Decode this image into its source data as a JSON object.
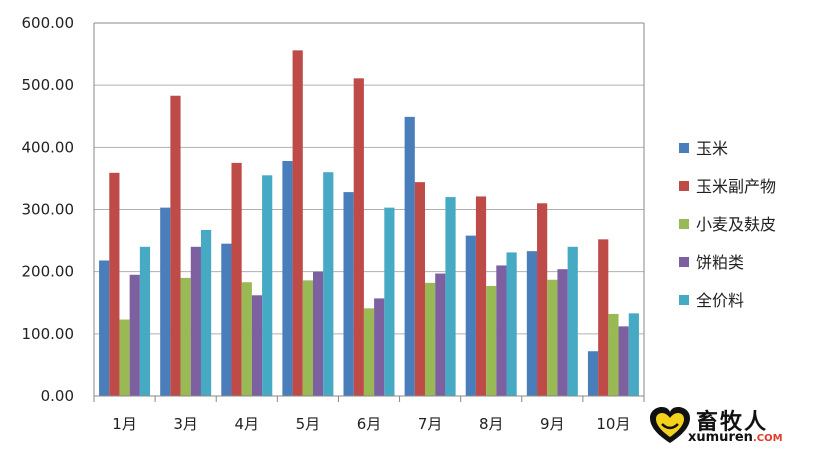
{
  "chart_data": {
    "type": "bar",
    "categories": [
      "1月",
      "3月",
      "4月",
      "5月",
      "6月",
      "7月",
      "8月",
      "9月",
      "10月"
    ],
    "series": [
      {
        "name": "玉米",
        "values": [
          218,
          303,
          245,
          378,
          328,
          449,
          258,
          233,
          72
        ],
        "color": "#4a7ebb"
      },
      {
        "name": "玉米副产物",
        "values": [
          359,
          483,
          375,
          556,
          511,
          344,
          321,
          310,
          252
        ],
        "color": "#be4b48"
      },
      {
        "name": "小麦及麸皮",
        "values": [
          123,
          190,
          183,
          186,
          141,
          182,
          177,
          187,
          132
        ],
        "color": "#98b954"
      },
      {
        "name": "饼粕类",
        "values": [
          195,
          240,
          162,
          200,
          157,
          197,
          210,
          204,
          112
        ],
        "color": "#7d60a0"
      },
      {
        "name": "全价料",
        "values": [
          240,
          267,
          355,
          360,
          303,
          320,
          231,
          240,
          133
        ],
        "color": "#46aac5"
      }
    ],
    "yticks": [
      "0.00",
      "100.00",
      "200.00",
      "300.00",
      "400.00",
      "500.00",
      "600.00"
    ],
    "ylim": [
      0,
      600
    ],
    "grid": true,
    "legend_position": "right"
  },
  "watermark": {
    "title": "畜牧人",
    "url_main": "xumuren",
    "url_suffix": ".COM"
  }
}
